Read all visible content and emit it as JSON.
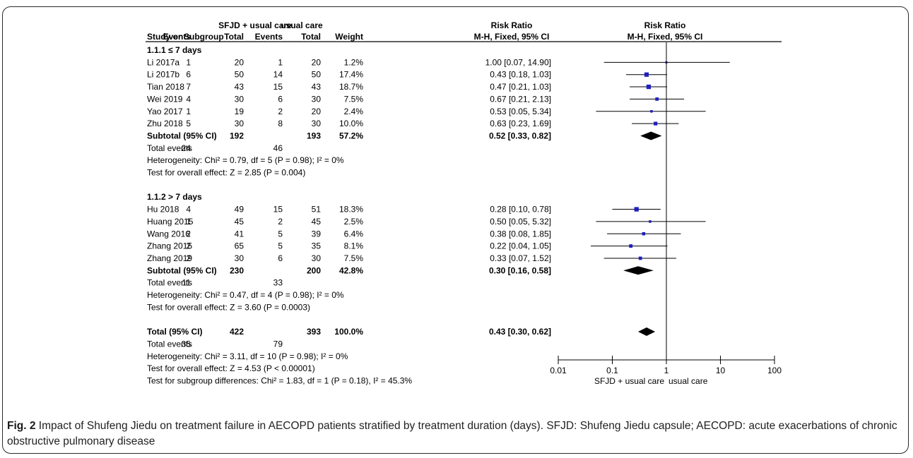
{
  "caption": {
    "label": "Fig. 2",
    "text": "Impact of Shufeng Jiedu on treatment failure in AECOPD patients stratified by treatment duration (days). SFJD: Shufeng Jiedu capsule; AECOPD: acute exacerbations of chronic obstructive pulmonary disease"
  },
  "colors": {
    "marker": "#1f1fbf",
    "ink": "#000000",
    "diamond": "#000000"
  },
  "chart_data": {
    "type": "forest",
    "x_scale": "log",
    "xlim": [
      0.01,
      100
    ],
    "x_ticks": [
      "0.01",
      "0.1",
      "1",
      "10",
      "100"
    ],
    "x_tick_values": [
      0.01,
      0.1,
      1,
      10,
      100
    ],
    "axis_left_label": "SFJD + usual care",
    "axis_right_label": "usual care",
    "header": {
      "group1": "SFJD + usual care",
      "group2": "usual care",
      "effect": "Risk Ratio",
      "effect_method": "M-H, Fixed, 95% CI",
      "plot_title": "Risk Ratio",
      "plot_method": "M-H, Fixed, 95% CI",
      "study": "Study or Subgroup",
      "events": "Events",
      "total": "Total",
      "weight": "Weight"
    },
    "rows": [
      {
        "kind": "subgroup",
        "label": "1.1.1 ≤ 7 days"
      },
      {
        "kind": "study",
        "label": "Li 2017a",
        "e1": "1",
        "t1": "20",
        "e2": "1",
        "t2": "20",
        "weight": "1.2%",
        "ci_text": "1.00 [0.07, 14.90]",
        "rr": 1.0,
        "lo": 0.07,
        "hi": 14.9
      },
      {
        "kind": "study",
        "label": "Li 2017b",
        "e1": "6",
        "t1": "50",
        "e2": "14",
        "t2": "50",
        "weight": "17.4%",
        "ci_text": "0.43 [0.18, 1.03]",
        "rr": 0.43,
        "lo": 0.18,
        "hi": 1.03
      },
      {
        "kind": "study",
        "label": "Tian 2018",
        "e1": "7",
        "t1": "43",
        "e2": "15",
        "t2": "43",
        "weight": "18.7%",
        "ci_text": "0.47 [0.21, 1.03]",
        "rr": 0.47,
        "lo": 0.21,
        "hi": 1.03
      },
      {
        "kind": "study",
        "label": "Wei 2019",
        "e1": "4",
        "t1": "30",
        "e2": "6",
        "t2": "30",
        "weight": "7.5%",
        "ci_text": "0.67 [0.21, 2.13]",
        "rr": 0.67,
        "lo": 0.21,
        "hi": 2.13
      },
      {
        "kind": "study",
        "label": "Yao 2017",
        "e1": "1",
        "t1": "19",
        "e2": "2",
        "t2": "20",
        "weight": "2.4%",
        "ci_text": "0.53 [0.05, 5.34]",
        "rr": 0.53,
        "lo": 0.05,
        "hi": 5.34
      },
      {
        "kind": "study",
        "label": "Zhu 2018",
        "e1": "5",
        "t1": "30",
        "e2": "8",
        "t2": "30",
        "weight": "10.0%",
        "ci_text": "0.63 [0.23, 1.69]",
        "rr": 0.63,
        "lo": 0.23,
        "hi": 1.69
      },
      {
        "kind": "subtotal",
        "label": "Subtotal (95% CI)",
        "t1": "192",
        "t2": "193",
        "weight": "57.2%",
        "ci_text": "0.52 [0.33, 0.82]",
        "rr": 0.52,
        "lo": 0.33,
        "hi": 0.82
      },
      {
        "kind": "events",
        "label": "Total events",
        "e1": "24",
        "e2": "46"
      },
      {
        "kind": "note",
        "label": "Heterogeneity: Chi² = 0.79, df = 5 (P = 0.98); I² = 0%"
      },
      {
        "kind": "note",
        "label": "Test for overall effect: Z = 2.85 (P = 0.004)"
      },
      {
        "kind": "blank"
      },
      {
        "kind": "subgroup",
        "label": "1.1.2 > 7 days"
      },
      {
        "kind": "study",
        "label": "Hu 2018",
        "e1": "4",
        "t1": "49",
        "e2": "15",
        "t2": "51",
        "weight": "18.3%",
        "ci_text": "0.28 [0.10, 0.78]",
        "rr": 0.28,
        "lo": 0.1,
        "hi": 0.78
      },
      {
        "kind": "study",
        "label": "Huang 2015",
        "e1": "1",
        "t1": "45",
        "e2": "2",
        "t2": "45",
        "weight": "2.5%",
        "ci_text": "0.50 [0.05, 5.32]",
        "rr": 0.5,
        "lo": 0.05,
        "hi": 5.32
      },
      {
        "kind": "study",
        "label": "Wang 2016",
        "e1": "2",
        "t1": "41",
        "e2": "5",
        "t2": "39",
        "weight": "6.4%",
        "ci_text": "0.38 [0.08, 1.85]",
        "rr": 0.38,
        "lo": 0.08,
        "hi": 1.85
      },
      {
        "kind": "study",
        "label": "Zhang 2015",
        "e1": "2",
        "t1": "65",
        "e2": "5",
        "t2": "35",
        "weight": "8.1%",
        "ci_text": "0.22 [0.04, 1.05]",
        "rr": 0.22,
        "lo": 0.04,
        "hi": 1.05
      },
      {
        "kind": "study",
        "label": "Zhang 2019",
        "e1": "2",
        "t1": "30",
        "e2": "6",
        "t2": "30",
        "weight": "7.5%",
        "ci_text": "0.33 [0.07, 1.52]",
        "rr": 0.33,
        "lo": 0.07,
        "hi": 1.52
      },
      {
        "kind": "subtotal",
        "label": "Subtotal (95% CI)",
        "t1": "230",
        "t2": "200",
        "weight": "42.8%",
        "ci_text": "0.30 [0.16, 0.58]",
        "rr": 0.3,
        "lo": 0.16,
        "hi": 0.58
      },
      {
        "kind": "events",
        "label": "Total events",
        "e1": "11",
        "e2": "33"
      },
      {
        "kind": "note",
        "label": "Heterogeneity: Chi² = 0.47, df = 4 (P = 0.98); I² = 0%"
      },
      {
        "kind": "note",
        "label": "Test for overall effect: Z = 3.60 (P = 0.0003)"
      },
      {
        "kind": "blank"
      },
      {
        "kind": "subtotal",
        "label": "Total (95% CI)",
        "t1": "422",
        "t2": "393",
        "weight": "100.0%",
        "ci_text": "0.43 [0.30, 0.62]",
        "rr": 0.43,
        "lo": 0.3,
        "hi": 0.62
      },
      {
        "kind": "events",
        "label": "Total events",
        "e1": "35",
        "e2": "79"
      },
      {
        "kind": "note",
        "label": "Heterogeneity: Chi² = 3.11, df = 10 (P = 0.98); I² = 0%"
      },
      {
        "kind": "note",
        "label": "Test for overall effect: Z = 4.53 (P < 0.00001)"
      },
      {
        "kind": "note",
        "label": "Test for subgroup differences: Chi² = 1.83, df = 1 (P = 0.18), I² = 45.3%"
      }
    ]
  }
}
